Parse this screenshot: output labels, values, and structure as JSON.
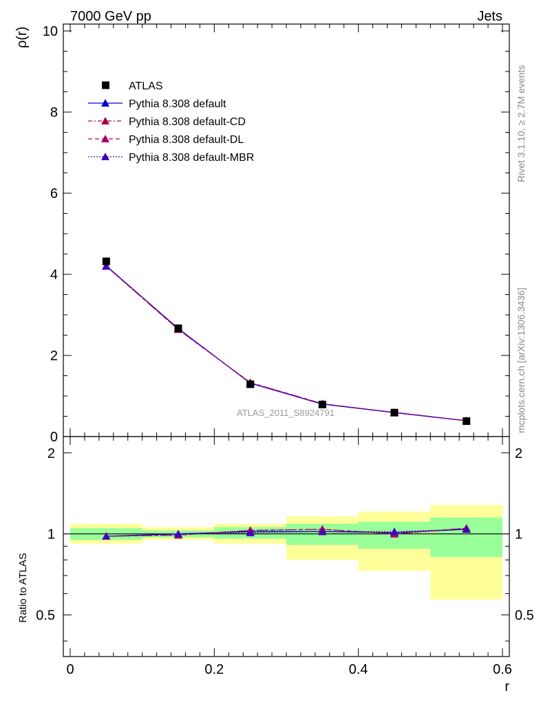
{
  "header": {
    "left": "7000 GeV pp",
    "right": "Jets"
  },
  "side_labels": {
    "rivet": "Rivet 3.1.10, ≥ 2.7M events",
    "mcplots": "mcplots.cern.ch [arXiv:1306.3436]"
  },
  "analysis_label": "ATLAS_2011_S8924791",
  "colors": {
    "data": "#000000",
    "default": "#0000cc",
    "default_cd": "#aa0044",
    "default_dl": "#aa0066",
    "default_mbr": "#4400bb",
    "band_inner": "#99ff99",
    "band_outer": "#ffff99"
  },
  "chart_data": [
    {
      "type": "line",
      "panel": "main",
      "ylabel": "ρ(r)",
      "xlim": [
        0,
        0.6
      ],
      "ylim": [
        0,
        10
      ],
      "yticks": [
        0,
        2,
        4,
        6,
        8,
        10
      ],
      "legend_position": "top-left",
      "x": [
        0.05,
        0.15,
        0.25,
        0.35,
        0.45,
        0.55
      ],
      "series": [
        {
          "name": "ATLAS",
          "style": "data",
          "values": [
            4.32,
            2.67,
            1.29,
            0.79,
            0.59,
            0.38
          ]
        },
        {
          "name": "Pythia 8.308 default",
          "style": "solid",
          "values": [
            4.21,
            2.66,
            1.32,
            0.8,
            0.59,
            0.39
          ]
        },
        {
          "name": "Pythia 8.308 default-CD",
          "style": "dashdot",
          "values": [
            4.2,
            2.64,
            1.33,
            0.81,
            0.59,
            0.39
          ]
        },
        {
          "name": "Pythia 8.308 default-DL",
          "style": "dashed",
          "values": [
            4.2,
            2.64,
            1.33,
            0.81,
            0.59,
            0.39
          ]
        },
        {
          "name": "Pythia 8.308 default-MBR",
          "style": "dotted",
          "values": [
            4.2,
            2.67,
            1.31,
            0.8,
            0.6,
            0.39
          ]
        }
      ]
    },
    {
      "type": "line",
      "panel": "ratio",
      "xlabel": "r",
      "ylabel": "Ratio to ATLAS",
      "xlim": [
        0,
        0.6
      ],
      "ylim": [
        0.35,
        2.3
      ],
      "yticks": [
        0.5,
        1,
        2
      ],
      "xticks": [
        0,
        0.2,
        0.4,
        0.6
      ],
      "bins": [
        [
          0,
          0.1
        ],
        [
          0.1,
          0.2
        ],
        [
          0.2,
          0.3
        ],
        [
          0.3,
          0.4
        ],
        [
          0.4,
          0.5
        ],
        [
          0.5,
          0.6
        ]
      ],
      "band_inner": [
        [
          0.95,
          1.05
        ],
        [
          0.97,
          1.03
        ],
        [
          0.96,
          1.06
        ],
        [
          0.91,
          1.09
        ],
        [
          0.88,
          1.11
        ],
        [
          0.82,
          1.15
        ]
      ],
      "band_outer": [
        [
          0.92,
          1.09
        ],
        [
          0.95,
          1.06
        ],
        [
          0.92,
          1.09
        ],
        [
          0.8,
          1.16
        ],
        [
          0.73,
          1.21
        ],
        [
          0.57,
          1.28
        ]
      ],
      "x": [
        0.05,
        0.15,
        0.25,
        0.35,
        0.45,
        0.55
      ],
      "series": [
        {
          "name": "Pythia 8.308 default",
          "values": [
            0.98,
            1.0,
            1.02,
            1.02,
            1.01,
            1.04
          ]
        },
        {
          "name": "Pythia 8.308 default-CD",
          "values": [
            0.98,
            0.99,
            1.03,
            1.04,
            1.0,
            1.05
          ]
        },
        {
          "name": "Pythia 8.308 default-DL",
          "values": [
            0.98,
            0.99,
            1.03,
            1.04,
            1.0,
            1.05
          ]
        },
        {
          "name": "Pythia 8.308 default-MBR",
          "values": [
            0.98,
            1.0,
            1.01,
            1.02,
            1.02,
            1.04
          ]
        }
      ]
    }
  ]
}
